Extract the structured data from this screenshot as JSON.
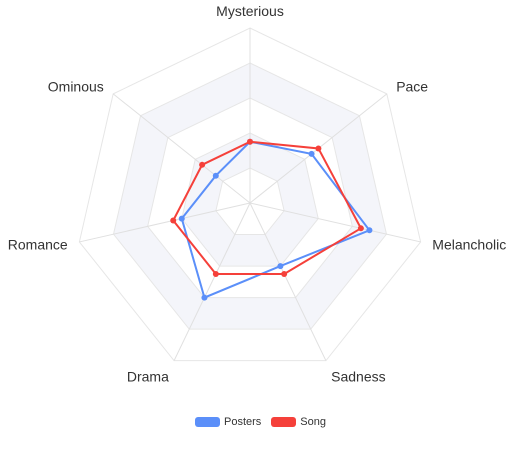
{
  "chart_data": {
    "type": "radar",
    "indicators": [
      "Mysterious",
      "Pace",
      "Melancholic",
      "Sadness",
      "Drama",
      "Romance",
      "Ominous"
    ],
    "max": 100,
    "split_number": 5,
    "split_area_colors": [
      "#ffffff",
      "#f4f5fa"
    ],
    "series": [
      {
        "name": "Posters",
        "color": "#5b8ff9",
        "values": [
          35,
          45,
          70,
          40,
          60,
          40,
          25
        ]
      },
      {
        "name": "Song",
        "color": "#f5403a",
        "values": [
          35,
          50,
          65,
          45,
          45,
          45,
          35
        ]
      }
    ],
    "legend_position": "bottom"
  }
}
